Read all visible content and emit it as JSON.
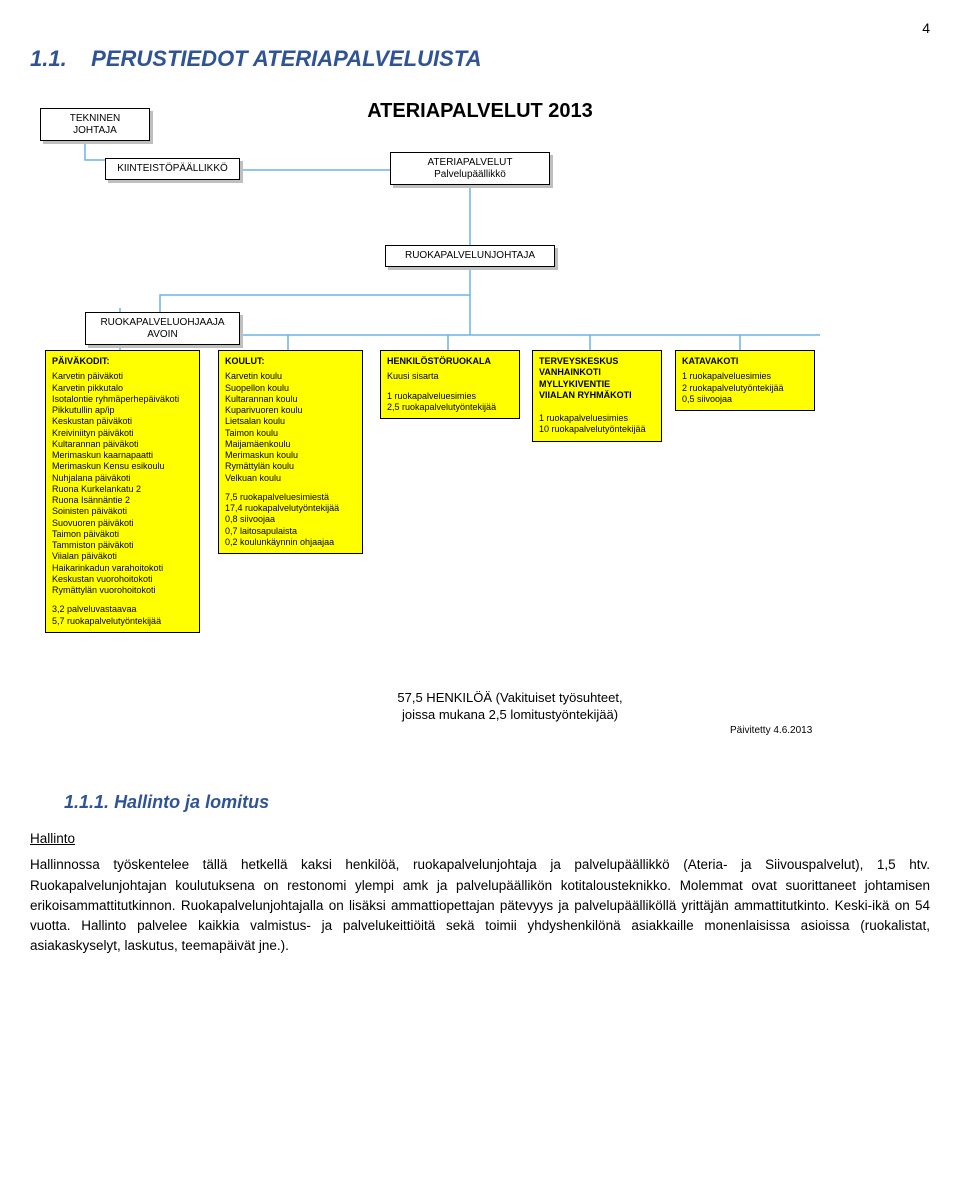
{
  "page_number": "4",
  "heading_prefix": "1.1.",
  "heading_text": "PERUSTIEDOT ATERIAPALVELUISTA",
  "subheading_prefix": "1.1.1.",
  "subheading_text": "Hallinto ja lomitus",
  "org_chart": {
    "title": "ATERIAPALVELUT 2013",
    "hierarchy": {
      "tekninen": "TEKNINEN JOHTAJA",
      "kiinteisto": "KIINTEISTÖPÄÄLLIKKÖ",
      "ateriapalvelut_box_l1": "ATERIAPALVELUT",
      "ateriapalvelut_box_l2": "Palvelupäällikkö",
      "ruokapalvelunjohtaja": "RUOKAPALVELUNJOHTAJA",
      "ruokapalveluohjaaja_l1": "RUOKAPALVELUOHJAAJA",
      "ruokapalveluohjaaja_l2": "AVOIN"
    },
    "leaves": {
      "paivakodit": {
        "header": "PÄIVÄKODIT:",
        "items": [
          "Karvetin päiväkoti",
          "Karvetin pikkutalo",
          "Isotalontie ryhmäperhepäiväkoti",
          "Pikkutullin ap/ip",
          "Keskustan päiväkoti",
          "Kreiviniityn päiväkoti",
          "Kultarannan päiväkoti",
          "Merimaskun kaarnapaatti",
          "Merimaskun Kensu esikoulu",
          "Nuhjalana päiväkoti",
          "Ruona Kurkelankatu 2",
          "Ruona Isännäntie 2",
          "Soinisten päiväkoti",
          "Suovuoren päiväkoti",
          "Taimon päiväkoti",
          "Tammiston päiväkoti",
          "Viialan päiväkoti",
          "Haikarinkadun varahoitokoti",
          "Keskustan vuorohoitokoti",
          "Rymättylän vuorohoitokoti"
        ],
        "footer": [
          "3,2 palveluvastaavaa",
          "5,7 ruokapalvelutyöntekijää"
        ]
      },
      "koulut": {
        "header": "KOULUT:",
        "items": [
          "Karvetin koulu",
          "Suopellon koulu",
          "Kultarannan koulu",
          "Kuparivuoren koulu",
          "Lietsalan koulu",
          "Taimon koulu",
          "Maijamäenkoulu",
          "Merimaskun koulu",
          "Rymättylän koulu",
          "Velkuan koulu"
        ],
        "footer": [
          "7,5 ruokapalveluesimiestä",
          "17,4 ruokapalvelutyöntekijää",
          "0,8 siivoojaa",
          "0,7 laitosapulaista",
          "0,2 koulunkäynnin ohjaajaa"
        ]
      },
      "henkilosto": {
        "header": "HENKILÖSTÖRUOKALA",
        "items": [
          "Kuusi sisarta"
        ],
        "footer": [
          "1 ruokapalveluesimies",
          "2,5 ruokapalvelutyöntekijää"
        ]
      },
      "terveys": {
        "header_lines": [
          "TERVEYSKESKUS",
          "VANHAINKOTI",
          "MYLLYKIVENTIE",
          "VIIALAN RYHMÄKOTI"
        ],
        "footer": [
          "1 ruokapalveluesimies",
          "10 ruokapalvelutyöntekijää"
        ]
      },
      "katavakoti": {
        "header": "KATAVAKOTI",
        "footer": [
          "1 ruokapalveluesimies",
          "2 ruokapalvelutyöntekijää",
          "0,5 siivoojaa"
        ]
      }
    },
    "summary_l1": "57,5 HENKILÖÄ (Vakituiset työsuhteet,",
    "summary_l2": "joissa mukana 2,5 lomitustyöntekijää)",
    "updated": "Päivitetty 4.6.2013",
    "colors": {
      "leaf_bg": "#ffff00",
      "box_bg": "#ffffff",
      "shadow": "#bfbfbf",
      "connector": "#6ab3e6"
    }
  },
  "body": {
    "para_title": "Hallinto",
    "para_text": "Hallinnossa työskentelee tällä hetkellä kaksi henkilöä, ruokapalvelunjohtaja ja palvelupäällikkö (Ateria- ja Siivouspalvelut), 1,5 htv. Ruokapalvelunjohtajan koulutuksena on restonomi ylempi amk ja palvelupäällikön kotitalousteknikko. Molemmat ovat suorittaneet johtamisen erikoisammattitutkinnon. Ruokapalvelunjohtajalla on lisäksi ammattiopettajan pätevyys ja palvelupäälliköllä yrittäjän ammattitutkinto. Keski-ikä on 54 vuotta. Hallinto palvelee kaikkia valmistus- ja palvelukeittiöitä sekä toimii yhdyshenkilönä asiakkaille monenlaisissa asioissa (ruokalistat, asiakaskyselyt, laskutus, teemapäivät jne.)."
  }
}
